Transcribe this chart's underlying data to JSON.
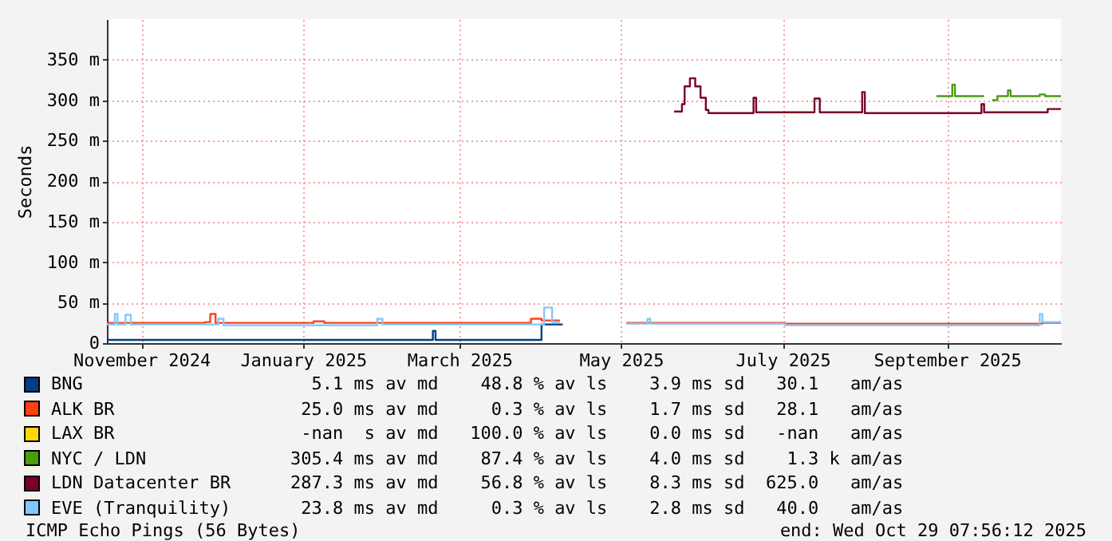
{
  "chart_data": {
    "type": "step",
    "ylabel": "Seconds",
    "xlim": [
      "2024-11-03",
      "2025-10-29"
    ],
    "xticks": [
      {
        "value": "2024-11-16",
        "label": "November 2024"
      },
      {
        "value": "2025-01-16",
        "label": "January 2025"
      },
      {
        "value": "2025-03-16",
        "label": "March 2025"
      },
      {
        "value": "2025-05-16",
        "label": "May 2025"
      },
      {
        "value": "2025-07-16",
        "label": "July 2025"
      },
      {
        "value": "2025-09-16",
        "label": "September 2025"
      }
    ],
    "ylim": [
      0,
      400
    ],
    "yticks": [
      0,
      {
        "value": 50,
        "label": "50 m"
      },
      {
        "value": 100,
        "label": "100 m"
      },
      {
        "value": 150,
        "label": "150 m"
      },
      {
        "value": 200,
        "label": "200 m"
      },
      {
        "value": 250,
        "label": "250 m"
      },
      {
        "value": 300,
        "label": "300 m"
      },
      {
        "value": 350,
        "label": "350 m"
      }
    ],
    "grid": true,
    "legend": "bottom",
    "series": [
      {
        "name": "BNG",
        "color": "#003f7f",
        "x": [
          "2024-11-03",
          "2025-03-04",
          "2025-03-06",
          "2025-03-07",
          "2025-04-16",
          "2025-04-24"
        ],
        "values": [
          4,
          4,
          15,
          4,
          23,
          23
        ]
      },
      {
        "name": "ALK BR",
        "color": "#ff4010",
        "x": [
          "2024-11-03",
          "2024-12-10",
          "2024-12-12",
          "2024-12-14",
          "2025-01-20",
          "2025-01-24",
          "2025-04-08",
          "2025-04-12",
          "2025-04-16",
          "2025-04-23",
          "2025-04-24",
          "2025-05-18",
          "2025-07-17",
          "2025-10-22",
          "2025-10-29"
        ],
        "values": [
          25,
          26,
          36,
          25,
          27,
          25,
          25,
          30,
          28,
          28,
          null,
          25,
          24,
          25,
          26
        ]
      },
      {
        "name": "LAX BR",
        "color": "#ffd700"
      },
      {
        "name": "NYC / LDN",
        "color": "#4c9b10",
        "x": [
          "2025-09-12",
          "2025-09-18",
          "2025-09-19",
          "2025-09-30",
          "2025-10-01",
          "2025-10-03",
          "2025-10-05",
          "2025-10-09",
          "2025-10-10",
          "2025-10-21",
          "2025-10-23",
          "2025-10-29"
        ],
        "values": [
          305,
          319,
          305,
          305,
          null,
          300,
          305,
          312,
          305,
          307,
          305,
          305
        ]
      },
      {
        "name": "LDN Datacenter BR",
        "color": "#7a0026",
        "x": [
          "2025-06-05",
          "2025-06-08",
          "2025-06-09",
          "2025-06-11",
          "2025-06-13",
          "2025-06-15",
          "2025-06-17",
          "2025-06-18",
          "2025-07-05",
          "2025-07-06",
          "2025-07-28",
          "2025-07-30",
          "2025-08-15",
          "2025-08-16",
          "2025-09-29",
          "2025-09-30",
          "2025-10-24",
          "2025-10-29"
        ],
        "values": [
          286,
          295,
          317,
          327,
          317,
          303,
          288,
          284,
          303,
          285,
          302,
          285,
          310,
          284,
          295,
          285,
          289,
          289
        ]
      },
      {
        "name": "EVE (Tranquility)",
        "color": "#80c8ff",
        "x": [
          "2024-11-03",
          "2024-11-06",
          "2024-11-07",
          "2024-11-10",
          "2024-11-12",
          "2024-12-15",
          "2024-12-17",
          "2025-02-13",
          "2025-02-15",
          "2025-04-16",
          "2025-04-17",
          "2025-04-20",
          "2025-04-23",
          "2025-04-24",
          "2025-05-18",
          "2025-05-26",
          "2025-05-27",
          "2025-07-17",
          "2025-10-20",
          "2025-10-21",
          "2025-10-22",
          "2025-10-29"
        ],
        "values": [
          23,
          36,
          23,
          35,
          23,
          30,
          22,
          30,
          23,
          23,
          44,
          26,
          26,
          null,
          24,
          30,
          24,
          22,
          22,
          36,
          26,
          26
        ]
      }
    ],
    "annotations": [
      "  5.1 ms av md    48.8 % av ls    3.9 ms sd   30.1   am/as",
      " 25.0 ms av md     0.3 % av ls    1.7 ms sd   28.1   am/as",
      " -nan  s av md   100.0 % av ls    0.0 ms sd   -nan   am/as",
      "305.4 ms av md    87.4 % av ls    4.0 ms sd    1.3 k am/as",
      "287.3 ms av md    56.8 % av ls    8.3 ms sd  625.0   am/as",
      " 23.8 ms av md     0.3 % av ls    2.8 ms sd   40.0   am/as",
      "ICMP Echo Pings (56 Bytes)",
      "end: Wed Oct 29 07:56:12 2025"
    ]
  }
}
